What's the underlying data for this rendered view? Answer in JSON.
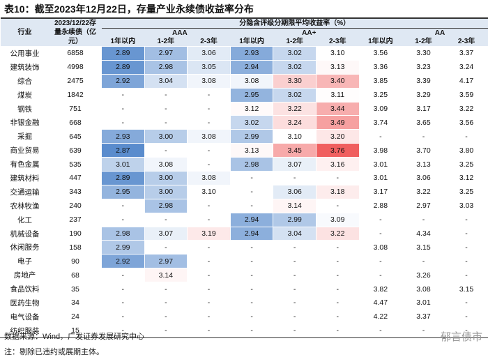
{
  "title": "表10：截至2023年12月22日，存量产业永续债收益率分布",
  "header": {
    "industry": "行业",
    "stock": "2023/12/22存量永续债（亿元）",
    "group": "分隐含评级分期限平均收益率（%）",
    "ratings": [
      "AAA",
      "AA+",
      "AA"
    ],
    "terms": [
      "1年以内",
      "1-2年",
      "2-3年"
    ]
  },
  "table": {
    "rows": [
      [
        "公用事业",
        "6858",
        "2.89",
        "2.97",
        "3.06",
        "2.93",
        "3.02",
        "3.10",
        "3.56",
        "3.30",
        "3.37"
      ],
      [
        "建筑装饰",
        "4998",
        "2.89",
        "2.98",
        "3.05",
        "2.94",
        "3.02",
        "3.13",
        "3.36",
        "3.23",
        "3.24"
      ],
      [
        "综合",
        "2475",
        "2.92",
        "3.04",
        "3.08",
        "3.08",
        "3.30",
        "3.40",
        "3.85",
        "3.39",
        "4.17"
      ],
      [
        "煤炭",
        "1842",
        "-",
        "-",
        "-",
        "2.95",
        "3.02",
        "3.11",
        "3.25",
        "3.29",
        "3.59"
      ],
      [
        "钢铁",
        "751",
        "-",
        "-",
        "-",
        "3.12",
        "3.22",
        "3.44",
        "3.09",
        "3.17",
        "3.22"
      ],
      [
        "非银金融",
        "668",
        "-",
        "-",
        "-",
        "3.02",
        "3.24",
        "3.49",
        "3.74",
        "3.65",
        "3.56"
      ],
      [
        "采掘",
        "645",
        "2.93",
        "3.00",
        "3.08",
        "2.99",
        "3.10",
        "3.20",
        "-",
        "-",
        "-"
      ],
      [
        "商业贸易",
        "639",
        "2.87",
        "-",
        "-",
        "3.13",
        "3.45",
        "3.76",
        "3.98",
        "3.70",
        "3.80"
      ],
      [
        "有色金属",
        "535",
        "3.01",
        "3.08",
        "-",
        "2.98",
        "3.07",
        "3.16",
        "3.01",
        "3.13",
        "3.25"
      ],
      [
        "建筑材料",
        "447",
        "2.89",
        "3.00",
        "3.08",
        "-",
        "-",
        "-",
        "3.01",
        "3.06",
        "3.12"
      ],
      [
        "交通运输",
        "343",
        "2.95",
        "3.00",
        "3.10",
        "-",
        "3.06",
        "3.18",
        "3.17",
        "3.22",
        "3.25"
      ],
      [
        "农林牧渔",
        "240",
        "-",
        "2.98",
        "-",
        "-",
        "3.14",
        "-",
        "2.88",
        "2.97",
        "3.03"
      ],
      [
        "化工",
        "237",
        "-",
        "-",
        "-",
        "2.94",
        "2.99",
        "3.09",
        "-",
        "-",
        "-"
      ],
      [
        "机械设备",
        "190",
        "2.98",
        "3.07",
        "3.19",
        "2.94",
        "3.04",
        "3.22",
        "-",
        "4.34",
        "-"
      ],
      [
        "休闲服务",
        "158",
        "2.99",
        "-",
        "-",
        "-",
        "-",
        "-",
        "3.08",
        "3.15",
        "-"
      ],
      [
        "电子",
        "90",
        "2.92",
        "2.97",
        "-",
        "-",
        "-",
        "-",
        "-",
        "-",
        "-"
      ],
      [
        "房地产",
        "68",
        "-",
        "3.14",
        "-",
        "-",
        "-",
        "-",
        "-",
        "3.26",
        "-"
      ],
      [
        "食品饮料",
        "35",
        "-",
        "-",
        "-",
        "-",
        "-",
        "-",
        "3.82",
        "3.08",
        "3.15"
      ],
      [
        "医药生物",
        "34",
        "-",
        "-",
        "-",
        "-",
        "-",
        "-",
        "4.47",
        "3.01",
        "-"
      ],
      [
        "电气设备",
        "24",
        "-",
        "-",
        "-",
        "-",
        "-",
        "-",
        "4.22",
        "3.37",
        "-"
      ],
      [
        "纺织服装",
        "15",
        "-",
        "-",
        "-",
        "-",
        "-",
        "-",
        "-",
        "-",
        "-"
      ]
    ]
  },
  "footer": {
    "source": "数据来源：Wind，广发证券发展研究中心",
    "note": "注：剔除已违约或展期主体。",
    "watermark": "郁言债市"
  }
}
